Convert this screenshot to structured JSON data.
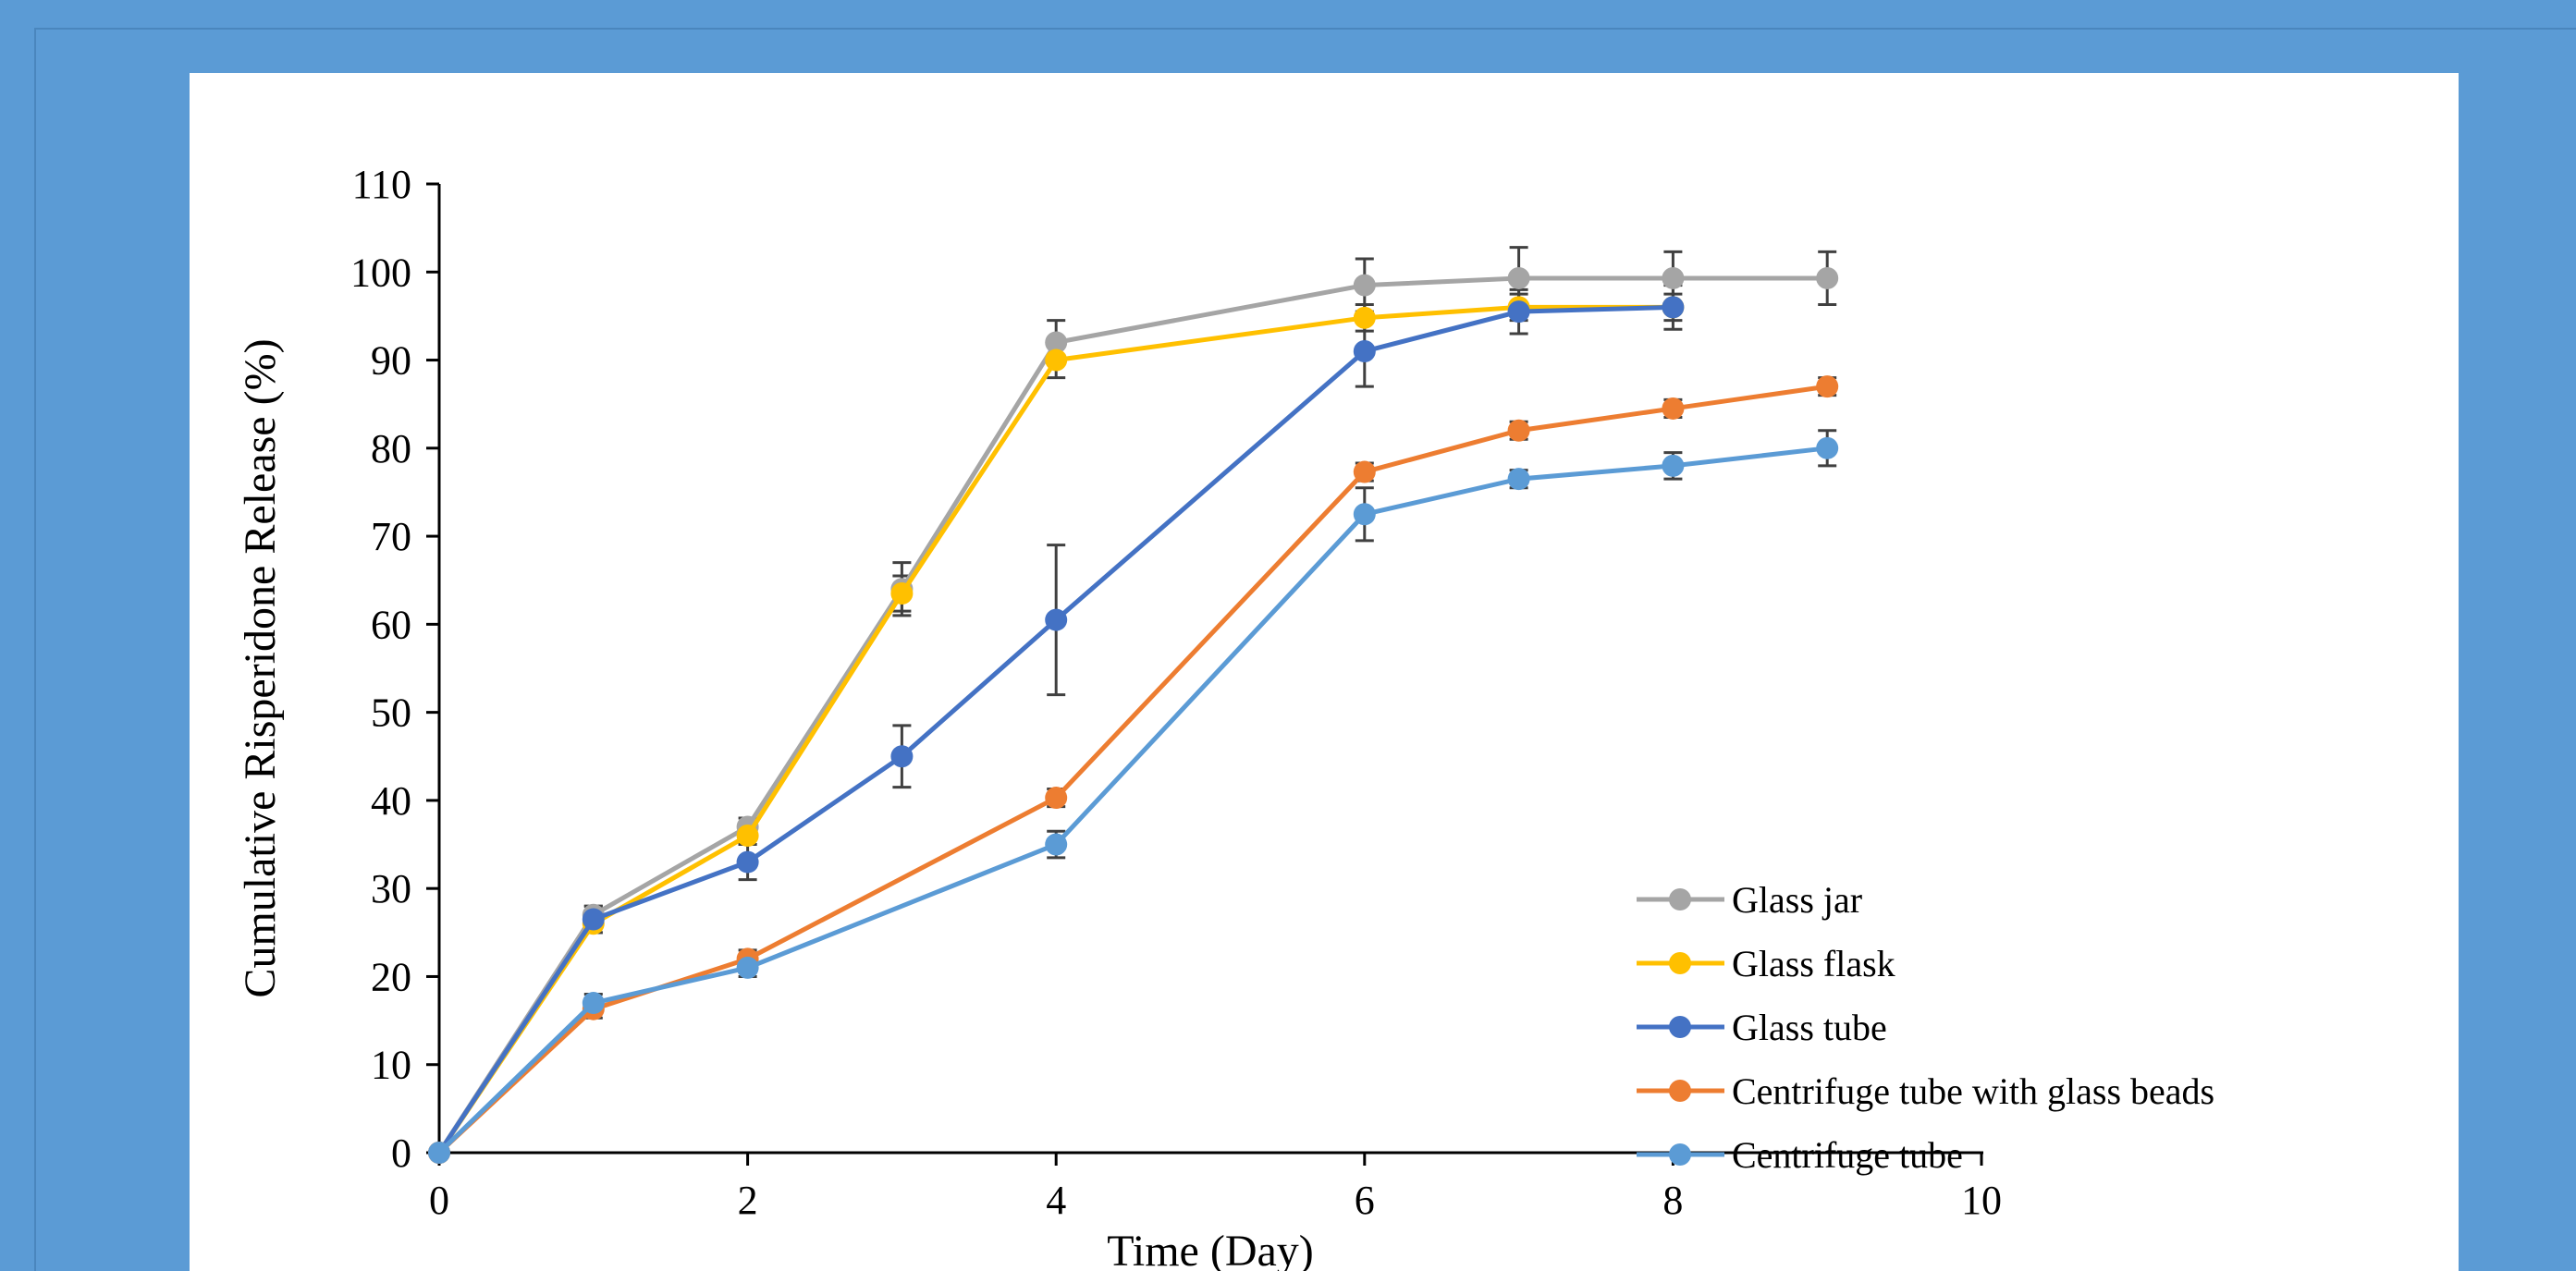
{
  "chart_data": {
    "type": "line",
    "title": "",
    "xlabel": "Time (Day)",
    "ylabel": "Cumulative Risperidone Release (%)",
    "xlim": [
      0,
      10
    ],
    "ylim": [
      0,
      110
    ],
    "xticks": [
      0,
      2,
      4,
      6,
      8,
      10
    ],
    "yticks": [
      0,
      10,
      20,
      30,
      40,
      50,
      60,
      70,
      80,
      90,
      100,
      110
    ],
    "grid": false,
    "legend_position": "lower-right",
    "series": [
      {
        "name": "Glass jar",
        "color": "#a5a5a5",
        "marker": "circle",
        "x": [
          0,
          1,
          2,
          3,
          4,
          6,
          7,
          8,
          9
        ],
        "y": [
          0,
          27,
          37,
          64,
          92,
          98.5,
          99.3,
          99.3,
          99.3
        ],
        "err": [
          0,
          1,
          1,
          3,
          2.5,
          3,
          3.5,
          3,
          3
        ]
      },
      {
        "name": "Glass flask",
        "color": "#ffc000",
        "marker": "circle",
        "x": [
          0,
          1,
          2,
          3,
          4,
          6,
          7,
          8
        ],
        "y": [
          0,
          26,
          36,
          63.5,
          90,
          94.8,
          96,
          96
        ],
        "err": [
          0,
          1,
          1,
          2,
          2,
          1.5,
          1.5,
          1.5
        ]
      },
      {
        "name": "Glass tube",
        "color": "#4472c4",
        "marker": "circle",
        "x": [
          0,
          1,
          2,
          3,
          4,
          6,
          7,
          8
        ],
        "y": [
          0,
          26.5,
          33,
          45,
          60.5,
          91,
          95.5,
          96
        ],
        "err": [
          0,
          1.5,
          2,
          3.5,
          8.5,
          4,
          2.5,
          2.5
        ]
      },
      {
        "name": "Centrifuge tube with glass beads",
        "color": "#ed7d31",
        "marker": "circle",
        "x": [
          0,
          1,
          2,
          4,
          6,
          7,
          8,
          9
        ],
        "y": [
          0,
          16.3,
          22,
          40.3,
          77.3,
          82,
          84.5,
          87
        ],
        "err": [
          0,
          1,
          1,
          1,
          1,
          1,
          1,
          1
        ]
      },
      {
        "name": "Centrifuge tube",
        "color": "#5b9bd5",
        "marker": "circle",
        "x": [
          0,
          1,
          2,
          4,
          6,
          7,
          8,
          9
        ],
        "y": [
          0,
          17,
          21,
          35,
          72.5,
          76.5,
          78,
          80
        ],
        "err": [
          0,
          1,
          1,
          1.5,
          3,
          1,
          1.5,
          2
        ]
      }
    ]
  }
}
